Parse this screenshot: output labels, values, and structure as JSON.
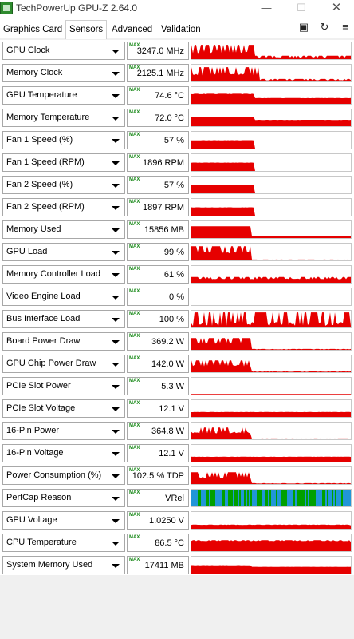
{
  "window": {
    "title": "TechPowerUp GPU-Z 2.64.0",
    "min_glyph": "—",
    "max_glyph": "☐",
    "close_glyph": "✕"
  },
  "tabs": [
    {
      "label": "Graphics Card"
    },
    {
      "label": "Sensors"
    },
    {
      "label": "Advanced"
    },
    {
      "label": "Validation"
    }
  ],
  "toolbar": {
    "camera_glyph": "▣",
    "refresh_glyph": "↻",
    "menu_glyph": "≡"
  },
  "max_badge": "MAX",
  "colors": {
    "graph_red": "#e60000",
    "perfcap_green": "#00a000",
    "perfcap_blue": "#2196d8"
  },
  "sensors": [
    {
      "name": "GPU Clock",
      "value": "3247.0 MHz"
    },
    {
      "name": "Memory Clock",
      "value": "2125.1 MHz"
    },
    {
      "name": "GPU Temperature",
      "value": "74.6 °C"
    },
    {
      "name": "Memory Temperature",
      "value": "72.0 °C"
    },
    {
      "name": "Fan 1 Speed (%)",
      "value": "57 %"
    },
    {
      "name": "Fan 1 Speed (RPM)",
      "value": "1896 RPM"
    },
    {
      "name": "Fan 2 Speed (%)",
      "value": "57 %"
    },
    {
      "name": "Fan 2 Speed (RPM)",
      "value": "1897 RPM"
    },
    {
      "name": "Memory Used",
      "value": "15856 MB"
    },
    {
      "name": "GPU Load",
      "value": "99 %"
    },
    {
      "name": "Memory Controller Load",
      "value": "61 %"
    },
    {
      "name": "Video Engine Load",
      "value": "0 %"
    },
    {
      "name": "Bus Interface Load",
      "value": "100 %"
    },
    {
      "name": "Board Power Draw",
      "value": "369.2 W"
    },
    {
      "name": "GPU Chip Power Draw",
      "value": "142.0 W"
    },
    {
      "name": "PCIe Slot Power",
      "value": "5.3 W"
    },
    {
      "name": "PCIe Slot Voltage",
      "value": "12.1 V"
    },
    {
      "name": "16-Pin Power",
      "value": "364.8 W"
    },
    {
      "name": "16-Pin Voltage",
      "value": "12.1 V"
    },
    {
      "name": "Power Consumption (%)",
      "value": "102.5 % TDP"
    },
    {
      "name": "PerfCap Reason",
      "value": "VRel"
    },
    {
      "name": "GPU Voltage",
      "value": "1.0250 V"
    },
    {
      "name": "CPU Temperature",
      "value": "86.5 °C"
    },
    {
      "name": "System Memory Used",
      "value": "17411 MB"
    }
  ]
}
